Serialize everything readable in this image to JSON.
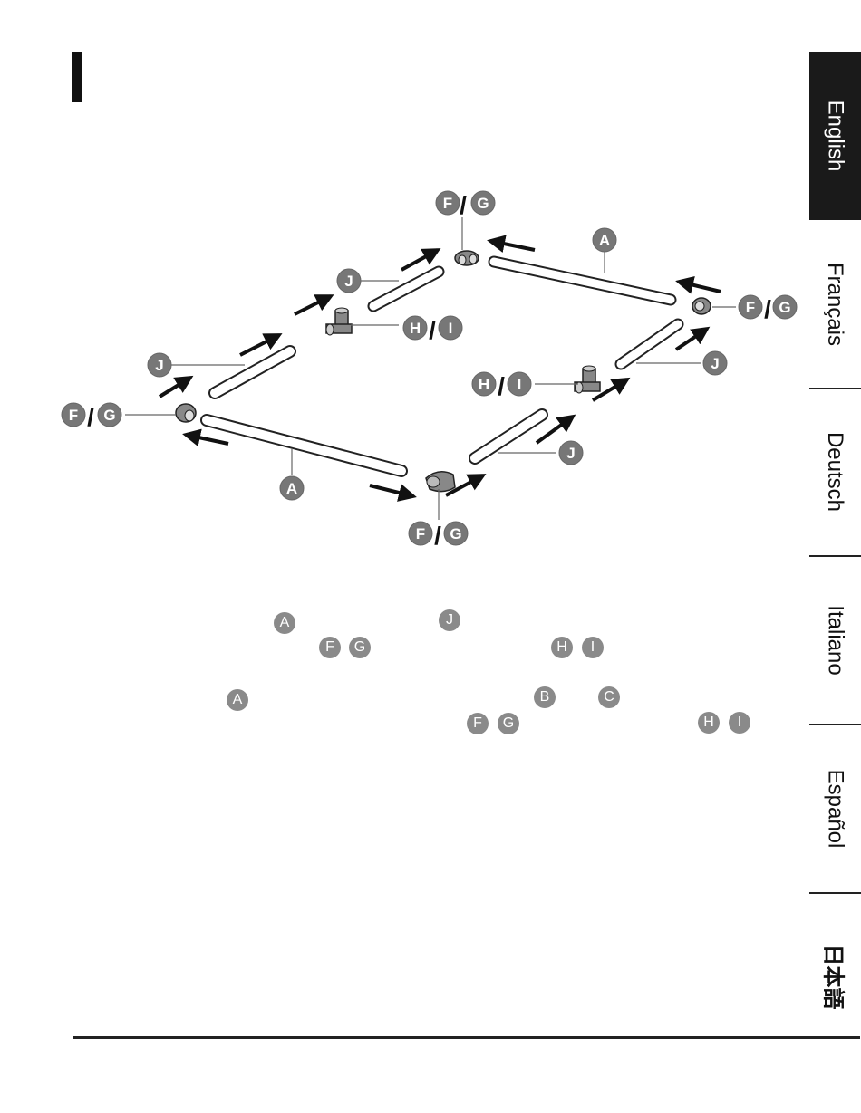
{
  "language_tabs": [
    {
      "label": "English",
      "active": true
    },
    {
      "label": "Français",
      "active": false
    },
    {
      "label": "Deutsch",
      "active": false
    },
    {
      "label": "Italiano",
      "active": false
    },
    {
      "label": "Español",
      "active": false
    },
    {
      "label": "日本語",
      "active": false
    }
  ],
  "diagram": {
    "slash": "/",
    "labels": {
      "A": "A",
      "F": "F",
      "G": "G",
      "H": "H",
      "I": "I",
      "J": "J"
    }
  },
  "text_refs": {
    "line1": [
      "A",
      "J"
    ],
    "line2": [
      "F",
      "G",
      "H",
      "I"
    ],
    "line3": [
      "A",
      "B",
      "C"
    ],
    "line4": [
      "F",
      "G",
      "H",
      "I"
    ]
  }
}
